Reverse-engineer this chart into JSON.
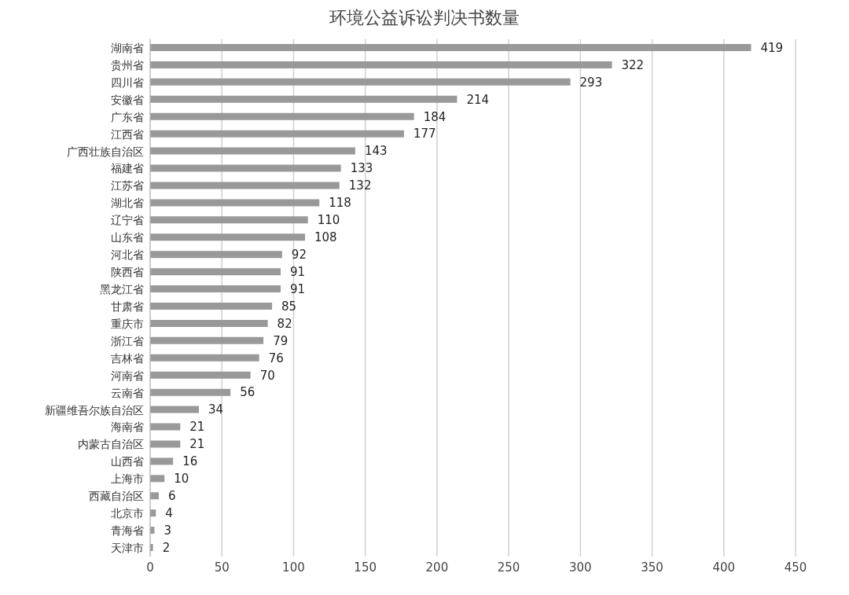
{
  "chart_data": {
    "type": "bar",
    "orientation": "horizontal",
    "title": "环境公益诉讼判决书数量",
    "categories": [
      "湖南省",
      "贵州省",
      "四川省",
      "安徽省",
      "广东省",
      "江西省",
      "广西壮族自治区",
      "福建省",
      "江苏省",
      "湖北省",
      "辽宁省",
      "山东省",
      "河北省",
      "陕西省",
      "黑龙江省",
      "甘肃省",
      "重庆市",
      "浙江省",
      "吉林省",
      "河南省",
      "云南省",
      "新疆维吾尔族自治区",
      "海南省",
      "内蒙古自治区",
      "山西省",
      "上海市",
      "西藏自治区",
      "北京市",
      "青海省",
      "天津市"
    ],
    "values": [
      419,
      322,
      293,
      214,
      184,
      177,
      143,
      133,
      132,
      118,
      110,
      108,
      92,
      91,
      91,
      85,
      82,
      79,
      76,
      70,
      56,
      34,
      21,
      21,
      16,
      10,
      6,
      4,
      3,
      2
    ],
    "color": "#999999",
    "xlim": [
      0,
      450
    ],
    "xticks": [
      0,
      50,
      100,
      150,
      200,
      250,
      300,
      350,
      400,
      450
    ],
    "grid": "x",
    "data_labels": true
  }
}
